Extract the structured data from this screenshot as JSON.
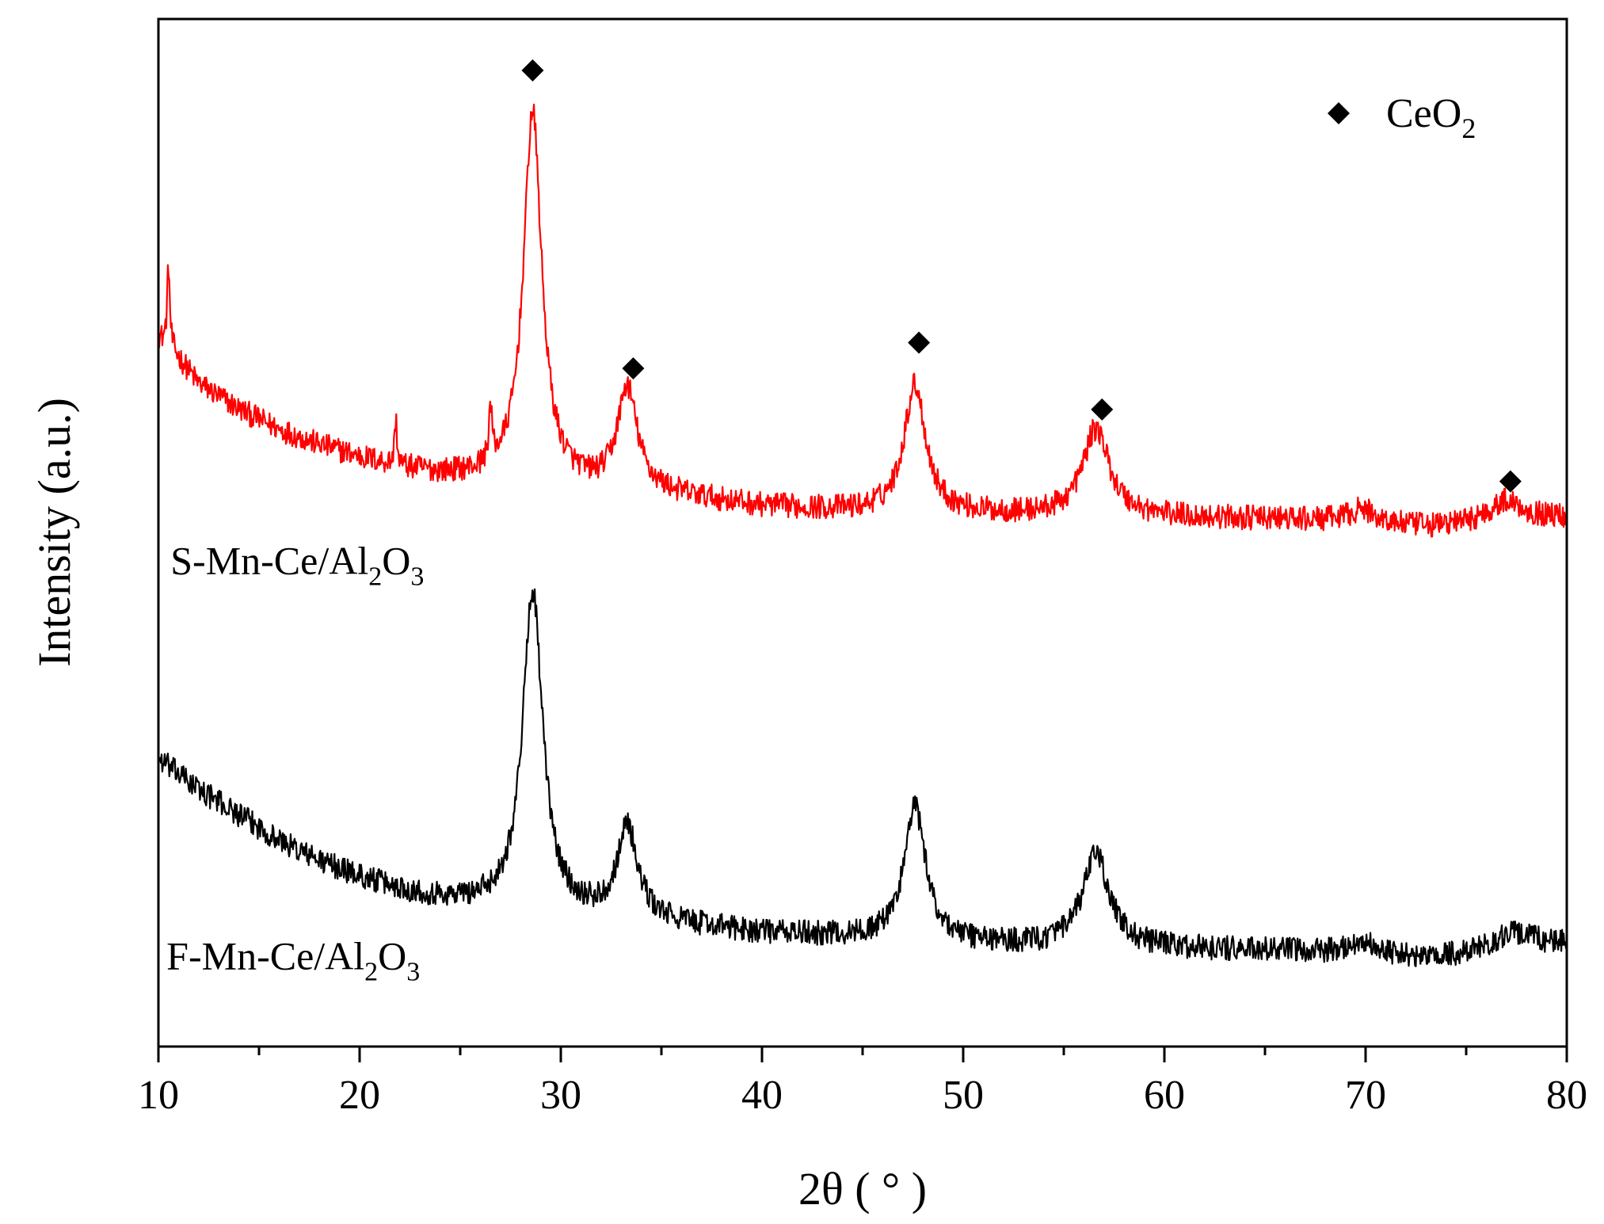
{
  "chart_data": {
    "type": "line",
    "title": "",
    "xlabel": "2θ ( ° )",
    "ylabel": "Intensity (a.u.)",
    "xlim": [
      10,
      80
    ],
    "ylim": [
      0,
      1
    ],
    "grid": false,
    "x_ticks": [
      10,
      20,
      30,
      40,
      50,
      60,
      70,
      80
    ],
    "x_tick_labels": [
      "10",
      "20",
      "30",
      "40",
      "50",
      "60",
      "70",
      "80"
    ],
    "y_ticks_shown": false,
    "legend": {
      "marker": "diamond",
      "label": "CeO",
      "label_subscript": "2",
      "placement": "top-right"
    },
    "peak_markers": {
      "symbol": "diamond",
      "series": "S-Mn-Ce/Al2O3",
      "positions": [
        {
          "x": 28.6,
          "y": 0.95
        },
        {
          "x": 33.6,
          "y": 0.66
        },
        {
          "x": 47.8,
          "y": 0.685
        },
        {
          "x": 56.9,
          "y": 0.62
        },
        {
          "x": 77.2,
          "y": 0.55
        }
      ]
    },
    "series": [
      {
        "name": "S-Mn-Ce/Al2O3",
        "label_parts": [
          "S-Mn-Ce/Al",
          "2",
          "O",
          "3"
        ],
        "color": "#ff0000",
        "label_anchor": {
          "x": 10.6,
          "y": 0.46
        },
        "noise": 0.012,
        "baseline": [
          [
            10,
            0.69
          ],
          [
            11,
            0.67
          ],
          [
            12,
            0.645
          ],
          [
            14,
            0.62
          ],
          [
            16,
            0.6
          ],
          [
            18,
            0.585
          ],
          [
            20,
            0.573
          ],
          [
            22,
            0.563
          ],
          [
            24,
            0.556
          ],
          [
            26,
            0.552
          ],
          [
            28,
            0.55
          ],
          [
            30,
            0.545
          ],
          [
            32,
            0.54
          ],
          [
            35,
            0.537
          ],
          [
            40,
            0.525
          ],
          [
            45,
            0.52
          ],
          [
            50,
            0.518
          ],
          [
            55,
            0.516
          ],
          [
            60,
            0.515
          ],
          [
            65,
            0.513
          ],
          [
            70,
            0.51
          ],
          [
            73,
            0.505
          ],
          [
            76,
            0.51
          ],
          [
            80,
            0.515
          ]
        ],
        "peaks": [
          {
            "x": 28.6,
            "a": 0.36,
            "w": 0.55
          },
          {
            "x": 33.3,
            "a": 0.1,
            "w": 0.6
          },
          {
            "x": 47.6,
            "a": 0.125,
            "w": 0.65
          },
          {
            "x": 56.6,
            "a": 0.085,
            "w": 0.8
          },
          {
            "x": 69.8,
            "a": 0.012,
            "w": 0.8
          },
          {
            "x": 77.0,
            "a": 0.02,
            "w": 1.0
          },
          {
            "x": 10.5,
            "a": 0.08,
            "w": 0.08
          },
          {
            "x": 21.8,
            "a": 0.045,
            "w": 0.07
          },
          {
            "x": 26.5,
            "a": 0.05,
            "w": 0.1
          }
        ]
      },
      {
        "name": "F-Mn-Ce/Al2O3",
        "label_parts": [
          "F-Mn-Ce/Al",
          "2",
          "O",
          "3"
        ],
        "color": "#000000",
        "label_anchor": {
          "x": 10.4,
          "y": 0.075
        },
        "noise": 0.012,
        "baseline": [
          [
            10,
            0.28
          ],
          [
            11,
            0.265
          ],
          [
            12,
            0.25
          ],
          [
            14,
            0.225
          ],
          [
            16,
            0.2
          ],
          [
            18,
            0.18
          ],
          [
            20,
            0.165
          ],
          [
            22,
            0.152
          ],
          [
            24,
            0.143
          ],
          [
            26,
            0.138
          ],
          [
            28,
            0.135
          ],
          [
            30,
            0.13
          ],
          [
            32,
            0.125
          ],
          [
            35,
            0.12
          ],
          [
            40,
            0.11
          ],
          [
            45,
            0.105
          ],
          [
            50,
            0.1
          ],
          [
            55,
            0.097
          ],
          [
            60,
            0.095
          ],
          [
            65,
            0.093
          ],
          [
            70,
            0.09
          ],
          [
            73,
            0.085
          ],
          [
            76,
            0.09
          ],
          [
            80,
            0.1
          ]
        ],
        "peaks": [
          {
            "x": 28.6,
            "a": 0.31,
            "w": 0.6
          },
          {
            "x": 33.3,
            "a": 0.09,
            "w": 0.6
          },
          {
            "x": 47.6,
            "a": 0.13,
            "w": 0.65
          },
          {
            "x": 56.6,
            "a": 0.09,
            "w": 0.8
          },
          {
            "x": 69.8,
            "a": 0.012,
            "w": 0.8
          },
          {
            "x": 77.3,
            "a": 0.018,
            "w": 1.2
          }
        ]
      }
    ]
  }
}
